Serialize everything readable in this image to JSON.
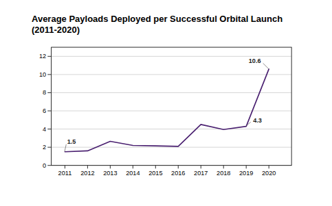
{
  "chart_data": {
    "type": "line",
    "title": "Average Payloads Deployed per Successful Orbital Launch (2011-2020)",
    "x": [
      2011,
      2012,
      2013,
      2014,
      2015,
      2016,
      2017,
      2018,
      2019,
      2020
    ],
    "values": [
      1.5,
      1.6,
      2.65,
      2.2,
      2.15,
      2.1,
      4.5,
      3.95,
      4.3,
      10.6
    ],
    "color": "#4a2070",
    "xlim": [
      2010.4,
      2021.0
    ],
    "xticks": [
      2011,
      2012,
      2013,
      2014,
      2015,
      2016,
      2017,
      2018,
      2019,
      2020
    ],
    "ylim": [
      0,
      13
    ],
    "yticks": [
      0,
      2,
      4,
      6,
      8,
      10,
      12
    ],
    "grid": "y",
    "annotations": [
      {
        "text": "1.5",
        "x": 2011,
        "y": 1.5
      },
      {
        "text": "4.3",
        "x": 2019,
        "y": 4.3
      },
      {
        "text": "10.6",
        "x": 2020,
        "y": 10.6
      }
    ]
  }
}
